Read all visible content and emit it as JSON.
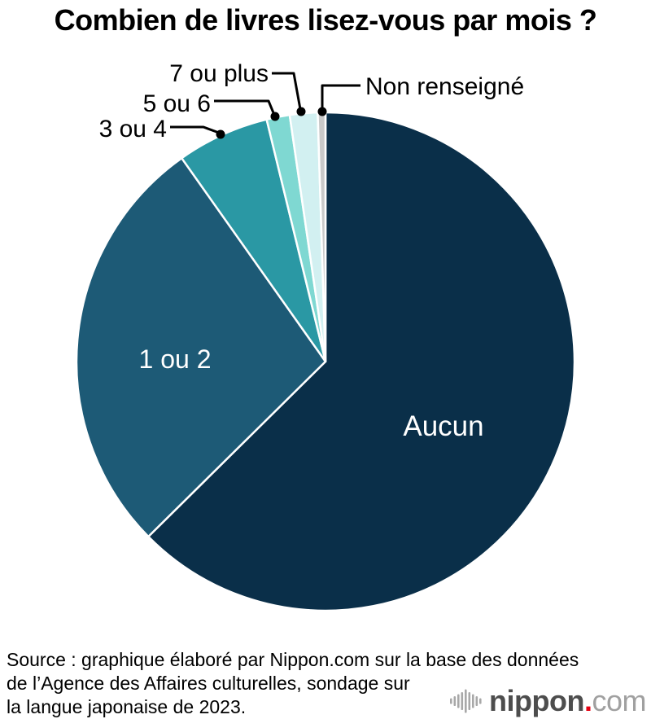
{
  "title": "Combien de livres lisez-vous par mois ?",
  "chart_data": {
    "type": "pie",
    "title": "Combien de livres lisez-vous par mois ?",
    "unit": "percent_of_respondents",
    "direction": "clockwise",
    "start_angle_deg": 0,
    "values_shown_on_chart": false,
    "legend_position": "labels-on-and-around-pie",
    "slices": [
      {
        "label": "Aucun",
        "value": 62.6,
        "color": "#0a2f49",
        "label_placement": "inside"
      },
      {
        "label": "1 ou 2",
        "value": 27.6,
        "color": "#1d5a76",
        "label_placement": "inside"
      },
      {
        "label": "3 ou 4",
        "value": 6.0,
        "color": "#2a98a4",
        "label_placement": "callout"
      },
      {
        "label": "5 ou 6",
        "value": 1.5,
        "color": "#7fd8d2",
        "label_placement": "callout"
      },
      {
        "label": "7 ou plus",
        "value": 1.8,
        "color": "#d2f0f1",
        "label_placement": "callout"
      },
      {
        "label": "Non renseigné",
        "value": 0.5,
        "color": "#c9c9c9",
        "label_placement": "callout"
      }
    ]
  },
  "source": {
    "lines": [
      "Source : graphique élaboré par Nippon.com sur la base des données",
      "de l’Agence des Affaires culturelles, sondage sur",
      "la langue japonaise de 2023."
    ]
  },
  "logo": {
    "icon": "sound-wave-bars-icon",
    "brand": "nippon",
    "dot": ".",
    "suffix": "com",
    "brand_color": "#4d4d4d",
    "dot_color": "#e60012",
    "suffix_color": "#a0a0a0",
    "icon_color": "#a8a8a8"
  }
}
